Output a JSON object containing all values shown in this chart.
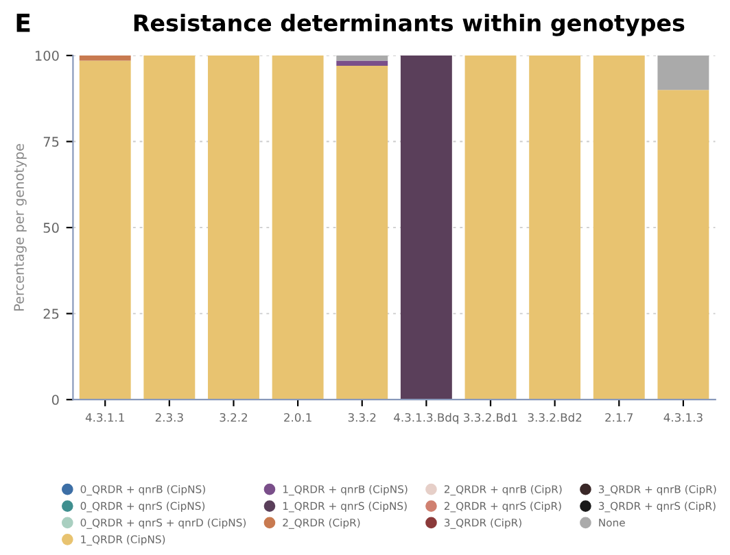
{
  "chart_data": {
    "type": "bar",
    "stacked": true,
    "title": "Resistance determinants within genotypes",
    "annotations": [
      "E"
    ],
    "ylabel": "Percentage per genotype",
    "categories": [
      "4.3.1.1",
      "2.3.3",
      "3.2.2",
      "2.0.1",
      "3.3.2",
      "4.3.1.3.Bdq",
      "3.3.2.Bd1",
      "3.3.2.Bd2",
      "2.1.7",
      "4.3.1.3"
    ],
    "series": [
      {
        "name": "0_QRDR + qnrB (CipNS)",
        "color": "#3d6fa6",
        "values": [
          0,
          0,
          0,
          0,
          0,
          0,
          0,
          0,
          0,
          0
        ]
      },
      {
        "name": "0_QRDR + qnrS (CipNS)",
        "color": "#3f8f8f",
        "values": [
          0,
          0,
          0,
          0,
          0,
          0,
          0,
          0,
          0,
          0
        ]
      },
      {
        "name": "0_QRDR + qnrS + qnrD (CipNS)",
        "color": "#a9cfc0",
        "values": [
          0,
          0,
          0,
          0,
          0,
          0,
          0,
          0,
          0,
          0
        ]
      },
      {
        "name": "1_QRDR (CipNS)",
        "color": "#e8c370",
        "values": [
          98.5,
          100,
          100,
          100,
          97,
          0,
          100,
          100,
          100,
          90
        ]
      },
      {
        "name": "1_QRDR + qnrB (CipNS)",
        "color": "#7a4f8a",
        "values": [
          0,
          0,
          0,
          0,
          1.5,
          0,
          0,
          0,
          0,
          0
        ]
      },
      {
        "name": "1_QRDR + qnrS (CipNS)",
        "color": "#5a3f5a",
        "values": [
          0,
          0,
          0,
          0,
          0,
          100,
          0,
          0,
          0,
          0
        ]
      },
      {
        "name": "2_QRDR (CipR)",
        "color": "#c87a50",
        "values": [
          1.5,
          0,
          0,
          0,
          0,
          0,
          0,
          0,
          0,
          0
        ]
      },
      {
        "name": "2_QRDR + qnrB (CipR)",
        "color": "#e6cfc8",
        "values": [
          0,
          0,
          0,
          0,
          0,
          0,
          0,
          0,
          0,
          0
        ]
      },
      {
        "name": "2_QRDR + qnrS (CipR)",
        "color": "#d08070",
        "values": [
          0,
          0,
          0,
          0,
          0,
          0,
          0,
          0,
          0,
          0
        ]
      },
      {
        "name": "3_QRDR (CipR)",
        "color": "#8b3a3a",
        "values": [
          0,
          0,
          0,
          0,
          0,
          0,
          0,
          0,
          0,
          0
        ]
      },
      {
        "name": "3_QRDR + qnrB (CipR)",
        "color": "#3a2828",
        "values": [
          0,
          0,
          0,
          0,
          0,
          0,
          0,
          0,
          0,
          0
        ]
      },
      {
        "name": "3_QRDR + qnrS (CipR)",
        "color": "#1a1a1a",
        "values": [
          0,
          0,
          0,
          0,
          0,
          0,
          0,
          0,
          0,
          0
        ]
      },
      {
        "name": "None",
        "color": "#aaaaaa",
        "values": [
          0,
          0,
          0,
          0,
          1.5,
          0,
          0,
          0,
          0,
          10
        ]
      }
    ],
    "ylim": [
      0,
      100
    ],
    "yticks": [
      0,
      25,
      50,
      75,
      100
    ],
    "grid": "y",
    "legend": "bottom"
  }
}
